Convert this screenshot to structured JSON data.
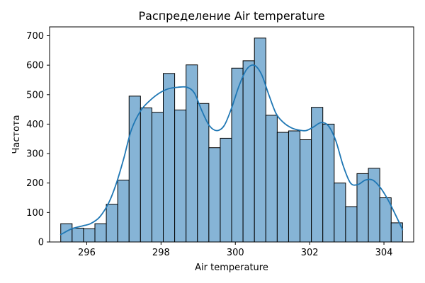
{
  "chart_data": {
    "type": "bar",
    "subtype": "histogram-with-kde",
    "title": "Распределение Air temperature",
    "xlabel": "Air temperature",
    "ylabel": "Частота",
    "xlim": [
      295.0,
      304.8
    ],
    "ylim": [
      0,
      730
    ],
    "grid": false,
    "legend": "none",
    "x_ticks": [
      296,
      298,
      300,
      302,
      304
    ],
    "y_ticks": [
      0,
      100,
      200,
      300,
      400,
      500,
      600,
      700
    ],
    "bins": {
      "start": 295.3,
      "width": 0.3067,
      "counts": [
        62,
        47,
        45,
        62,
        128,
        210,
        495,
        455,
        440,
        572,
        448,
        601,
        470,
        320,
        352,
        590,
        615,
        692,
        430,
        372,
        377,
        347,
        457,
        400,
        200,
        120,
        232,
        250,
        150,
        65
      ]
    },
    "kde": {
      "x": [
        295.3,
        295.6,
        295.9,
        296.1,
        296.35,
        296.6,
        296.8,
        297.0,
        297.2,
        297.45,
        297.7,
        297.95,
        298.2,
        298.45,
        298.7,
        298.9,
        299.1,
        299.3,
        299.5,
        299.7,
        299.9,
        300.1,
        300.3,
        300.5,
        300.7,
        300.9,
        301.1,
        301.3,
        301.5,
        301.7,
        301.9,
        302.1,
        302.3,
        302.5,
        302.7,
        302.9,
        303.1,
        303.3,
        303.5,
        303.7,
        303.9,
        304.1,
        304.3,
        304.5
      ],
      "y": [
        25,
        45,
        55,
        62,
        85,
        135,
        200,
        285,
        380,
        445,
        480,
        505,
        520,
        525,
        525,
        505,
        445,
        395,
        378,
        395,
        455,
        530,
        585,
        600,
        570,
        500,
        435,
        405,
        388,
        380,
        378,
        390,
        405,
        395,
        345,
        260,
        200,
        195,
        210,
        210,
        185,
        145,
        95,
        42
      ]
    },
    "colors": {
      "bar_fill": "#86b4d6",
      "bar_edge": "#000000",
      "kde_line": "#1f77b4"
    }
  }
}
